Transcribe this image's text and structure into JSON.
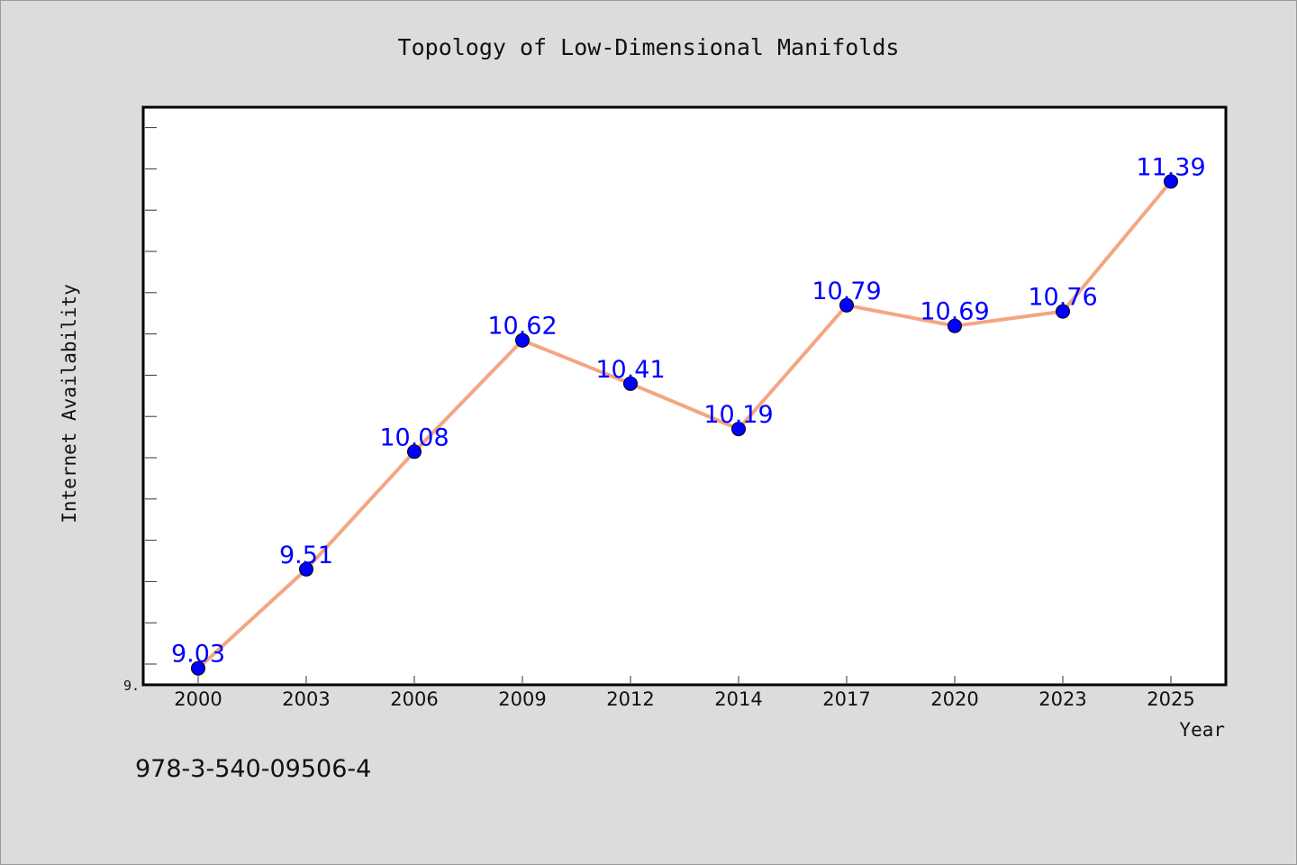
{
  "chart_data": {
    "type": "line",
    "title": "Topology of Low-Dimensional Manifolds",
    "xlabel": "Year",
    "ylabel": "Internet Availability",
    "categories": [
      "2000",
      "2003",
      "2006",
      "2009",
      "2012",
      "2014",
      "2017",
      "2020",
      "2023",
      "2025"
    ],
    "series": [
      {
        "values": [
          9.03,
          9.51,
          10.08,
          10.62,
          10.41,
          10.19,
          10.79,
          10.69,
          10.76,
          11.39
        ]
      }
    ],
    "data_labels": [
      "9.03",
      "9.51",
      "10.08",
      "10.62",
      "10.41",
      "10.19",
      "10.79",
      "10.69",
      "10.76",
      "11.39"
    ],
    "ytick_label": "9.",
    "ylim": [
      8.95,
      11.75
    ],
    "grid": false,
    "legend": "none",
    "line_color": "#f4a582",
    "marker_color": "#0000ff",
    "label_color": "#0000ff"
  },
  "footer": {
    "code": "978-3-540-09506-4"
  }
}
